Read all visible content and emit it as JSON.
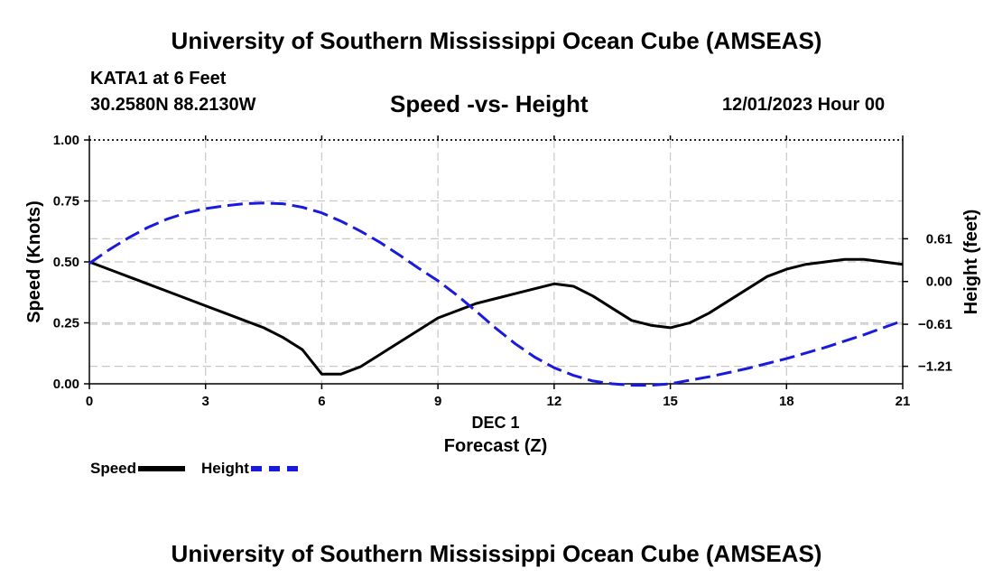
{
  "header": {
    "title": "University of Southern Mississippi Ocean Cube (AMSEAS)",
    "station": "KATA1 at 6 Feet",
    "coords": "30.2580N  88.2130W",
    "chart_title": "Speed -vs- Height",
    "datetime": "12/01/2023 Hour 00"
  },
  "footer": {
    "title": "University of Southern Mississippi Ocean Cube (AMSEAS)"
  },
  "colors": {
    "speed": "#000000",
    "height": "#1a1adc",
    "grid": "#c8c8c8"
  },
  "legend": {
    "speed_label": "Speed",
    "height_label": "Height"
  },
  "chart_data": {
    "type": "line",
    "title": "Speed -vs- Height",
    "xlabel_line1": "DEC 1",
    "xlabel": "Forecast (Z)",
    "ylabel": "Speed (Knots)",
    "y2label": "Height (feet)",
    "xlim": [
      0,
      21
    ],
    "ylim": [
      0,
      1.0
    ],
    "y2lim": [
      -1.46,
      2.02
    ],
    "x_ticks": [
      0,
      3,
      6,
      9,
      12,
      15,
      18,
      21
    ],
    "x_tick_labels": [
      "0",
      "3",
      "6",
      "9",
      "12",
      "15",
      "18",
      "21"
    ],
    "y_ticks": [
      0,
      0.25,
      0.5,
      0.75,
      1.0
    ],
    "y_tick_labels": [
      "0.00",
      "0.25",
      "0.50",
      "0.75",
      "1.00"
    ],
    "y2_ticks": [
      0.61,
      0.0,
      -0.61,
      -1.21
    ],
    "y2_tick_labels": [
      "0.61",
      "0.00",
      "−0.61",
      "−1.21"
    ],
    "grid": true,
    "legend_position": "bottom-left",
    "series": [
      {
        "name": "Speed",
        "axis": "left",
        "style": "solid",
        "x": [
          0,
          0.5,
          1,
          1.5,
          2,
          2.5,
          3,
          3.5,
          4,
          4.5,
          5,
          5.5,
          6,
          6.5,
          7,
          7.5,
          8,
          8.5,
          9,
          9.5,
          10,
          10.5,
          11,
          11.5,
          12,
          12.5,
          13,
          13.5,
          14,
          14.5,
          15,
          15.5,
          16,
          16.5,
          17,
          17.5,
          18,
          18.5,
          19,
          19.5,
          20,
          20.5,
          21
        ],
        "values": [
          0.5,
          0.47,
          0.44,
          0.41,
          0.38,
          0.35,
          0.32,
          0.29,
          0.26,
          0.23,
          0.19,
          0.14,
          0.04,
          0.04,
          0.07,
          0.12,
          0.17,
          0.22,
          0.27,
          0.3,
          0.33,
          0.35,
          0.37,
          0.39,
          0.41,
          0.4,
          0.36,
          0.31,
          0.26,
          0.24,
          0.23,
          0.25,
          0.29,
          0.34,
          0.39,
          0.44,
          0.47,
          0.49,
          0.5,
          0.51,
          0.51,
          0.5,
          0.49
        ]
      },
      {
        "name": "Height",
        "axis": "right",
        "style": "dashed",
        "x": [
          0,
          0.5,
          1,
          1.5,
          2,
          2.5,
          3,
          3.5,
          4,
          4.5,
          5,
          5.5,
          6,
          6.5,
          7,
          7.5,
          8,
          8.5,
          9,
          9.5,
          10,
          10.5,
          11,
          11.5,
          12,
          12.5,
          13,
          13.5,
          14,
          14.5,
          15,
          15.5,
          16,
          16.5,
          17,
          17.5,
          18,
          18.5,
          19,
          19.5,
          20,
          20.5,
          21
        ],
        "values": [
          0.26,
          0.45,
          0.62,
          0.77,
          0.89,
          0.98,
          1.04,
          1.08,
          1.11,
          1.12,
          1.11,
          1.06,
          0.98,
          0.86,
          0.72,
          0.56,
          0.38,
          0.19,
          0.01,
          -0.2,
          -0.43,
          -0.67,
          -0.89,
          -1.08,
          -1.23,
          -1.34,
          -1.42,
          -1.46,
          -1.48,
          -1.48,
          -1.46,
          -1.41,
          -1.36,
          -1.3,
          -1.24,
          -1.17,
          -1.1,
          -1.02,
          -0.94,
          -0.85,
          -0.76,
          -0.66,
          -0.56
        ]
      }
    ]
  }
}
